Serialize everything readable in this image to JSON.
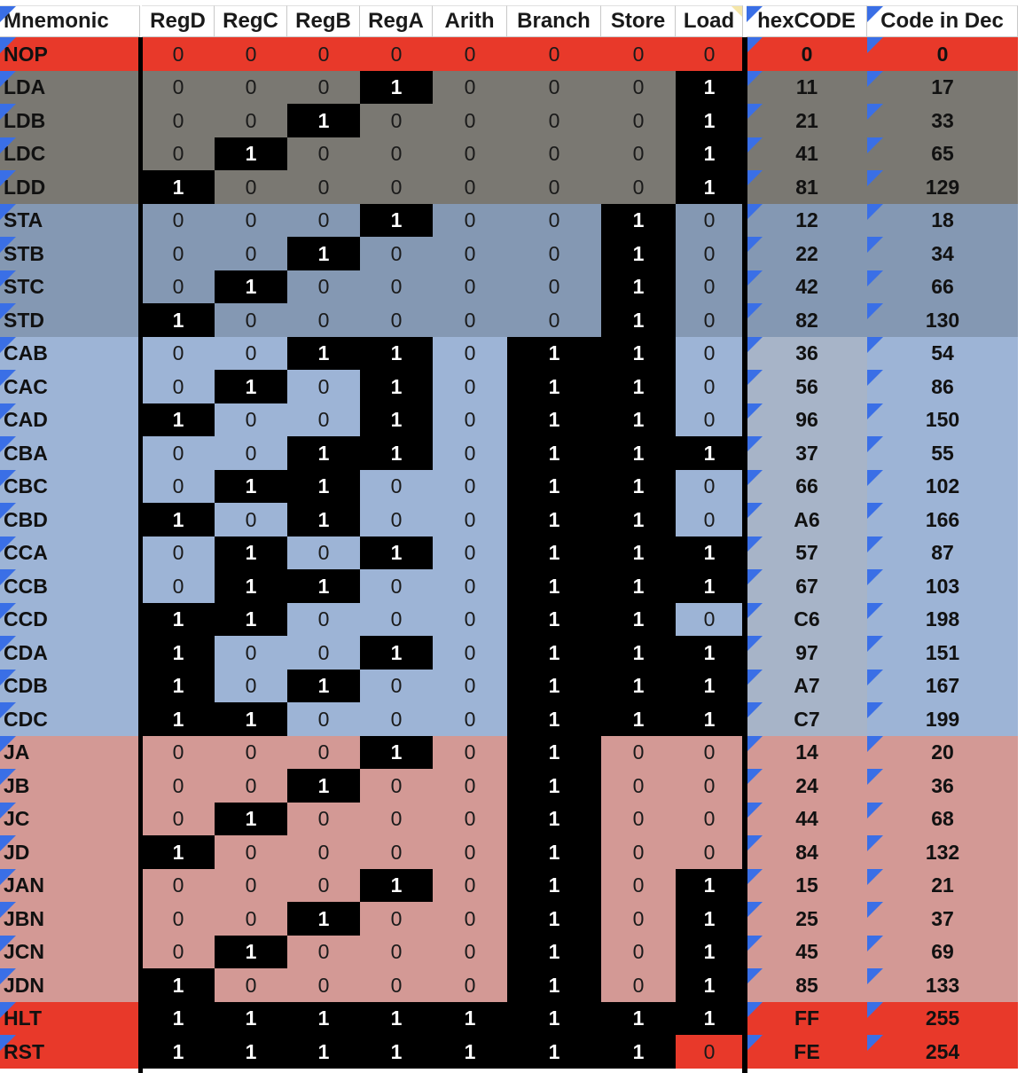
{
  "colors": {
    "red": "#e8392a",
    "gray": "#7a7872",
    "slate": "#8498b3",
    "blue": "#9db4d6",
    "hexblue": "#a7b4c8",
    "pink": "#d39995",
    "black": "#000000",
    "triangle": "#3a6fe6"
  },
  "headers": [
    "Mnemonic",
    "RegD",
    "RegC",
    "RegB",
    "RegA",
    "Arith",
    "Branch",
    "Store",
    "Load",
    "hexCODE",
    "Code in Dec"
  ],
  "rows": [
    {
      "m": "NOP",
      "bits": [
        0,
        0,
        0,
        0,
        0,
        0,
        0,
        0
      ],
      "hex": "0",
      "dec": "0",
      "group": "red"
    },
    {
      "m": "LDA",
      "bits": [
        0,
        0,
        0,
        1,
        0,
        0,
        0,
        1
      ],
      "hex": "11",
      "dec": "17",
      "group": "gray"
    },
    {
      "m": "LDB",
      "bits": [
        0,
        0,
        1,
        0,
        0,
        0,
        0,
        1
      ],
      "hex": "21",
      "dec": "33",
      "group": "gray"
    },
    {
      "m": "LDC",
      "bits": [
        0,
        1,
        0,
        0,
        0,
        0,
        0,
        1
      ],
      "hex": "41",
      "dec": "65",
      "group": "gray"
    },
    {
      "m": "LDD",
      "bits": [
        1,
        0,
        0,
        0,
        0,
        0,
        0,
        1
      ],
      "hex": "81",
      "dec": "129",
      "group": "gray"
    },
    {
      "m": "STA",
      "bits": [
        0,
        0,
        0,
        1,
        0,
        0,
        1,
        0
      ],
      "hex": "12",
      "dec": "18",
      "group": "slate"
    },
    {
      "m": "STB",
      "bits": [
        0,
        0,
        1,
        0,
        0,
        0,
        1,
        0
      ],
      "hex": "22",
      "dec": "34",
      "group": "slate"
    },
    {
      "m": "STC",
      "bits": [
        0,
        1,
        0,
        0,
        0,
        0,
        1,
        0
      ],
      "hex": "42",
      "dec": "66",
      "group": "slate"
    },
    {
      "m": "STD",
      "bits": [
        1,
        0,
        0,
        0,
        0,
        0,
        1,
        0
      ],
      "hex": "82",
      "dec": "130",
      "group": "slate"
    },
    {
      "m": "CAB",
      "bits": [
        0,
        0,
        1,
        1,
        0,
        1,
        1,
        0
      ],
      "hex": "36",
      "dec": "54",
      "group": "blue"
    },
    {
      "m": "CAC",
      "bits": [
        0,
        1,
        0,
        1,
        0,
        1,
        1,
        0
      ],
      "hex": "56",
      "dec": "86",
      "group": "blue"
    },
    {
      "m": "CAD",
      "bits": [
        1,
        0,
        0,
        1,
        0,
        1,
        1,
        0
      ],
      "hex": "96",
      "dec": "150",
      "group": "blue"
    },
    {
      "m": "CBA",
      "bits": [
        0,
        0,
        1,
        1,
        0,
        1,
        1,
        1
      ],
      "hex": "37",
      "dec": "55",
      "group": "blue"
    },
    {
      "m": "CBC",
      "bits": [
        0,
        1,
        1,
        0,
        0,
        1,
        1,
        0
      ],
      "hex": "66",
      "dec": "102",
      "group": "blue"
    },
    {
      "m": "CBD",
      "bits": [
        1,
        0,
        1,
        0,
        0,
        1,
        1,
        0
      ],
      "hex": "A6",
      "dec": "166",
      "group": "blue"
    },
    {
      "m": "CCA",
      "bits": [
        0,
        1,
        0,
        1,
        0,
        1,
        1,
        1
      ],
      "hex": "57",
      "dec": "87",
      "group": "blue"
    },
    {
      "m": "CCB",
      "bits": [
        0,
        1,
        1,
        0,
        0,
        1,
        1,
        1
      ],
      "hex": "67",
      "dec": "103",
      "group": "blue"
    },
    {
      "m": "CCD",
      "bits": [
        1,
        1,
        0,
        0,
        0,
        1,
        1,
        0
      ],
      "hex": "C6",
      "dec": "198",
      "group": "blue"
    },
    {
      "m": "CDA",
      "bits": [
        1,
        0,
        0,
        1,
        0,
        1,
        1,
        1
      ],
      "hex": "97",
      "dec": "151",
      "group": "blue"
    },
    {
      "m": "CDB",
      "bits": [
        1,
        0,
        1,
        0,
        0,
        1,
        1,
        1
      ],
      "hex": "A7",
      "dec": "167",
      "group": "blue"
    },
    {
      "m": "CDC",
      "bits": [
        1,
        1,
        0,
        0,
        0,
        1,
        1,
        1
      ],
      "hex": "C7",
      "dec": "199",
      "group": "blue"
    },
    {
      "m": "JA",
      "bits": [
        0,
        0,
        0,
        1,
        0,
        1,
        0,
        0
      ],
      "hex": "14",
      "dec": "20",
      "group": "pink"
    },
    {
      "m": "JB",
      "bits": [
        0,
        0,
        1,
        0,
        0,
        1,
        0,
        0
      ],
      "hex": "24",
      "dec": "36",
      "group": "pink"
    },
    {
      "m": "JC",
      "bits": [
        0,
        1,
        0,
        0,
        0,
        1,
        0,
        0
      ],
      "hex": "44",
      "dec": "68",
      "group": "pink"
    },
    {
      "m": "JD",
      "bits": [
        1,
        0,
        0,
        0,
        0,
        1,
        0,
        0
      ],
      "hex": "84",
      "dec": "132",
      "group": "pink"
    },
    {
      "m": "JAN",
      "bits": [
        0,
        0,
        0,
        1,
        0,
        1,
        0,
        1
      ],
      "hex": "15",
      "dec": "21",
      "group": "pink"
    },
    {
      "m": "JBN",
      "bits": [
        0,
        0,
        1,
        0,
        0,
        1,
        0,
        1
      ],
      "hex": "25",
      "dec": "37",
      "group": "pink"
    },
    {
      "m": "JCN",
      "bits": [
        0,
        1,
        0,
        0,
        0,
        1,
        0,
        1
      ],
      "hex": "45",
      "dec": "69",
      "group": "pink"
    },
    {
      "m": "JDN",
      "bits": [
        1,
        0,
        0,
        0,
        0,
        1,
        0,
        1
      ],
      "hex": "85",
      "dec": "133",
      "group": "pink"
    },
    {
      "m": "HLT",
      "bits": [
        1,
        1,
        1,
        1,
        1,
        1,
        1,
        1
      ],
      "hex": "FF",
      "dec": "255",
      "group": "red"
    },
    {
      "m": "RST",
      "bits": [
        1,
        1,
        1,
        1,
        1,
        1,
        1,
        0
      ],
      "hex": "FE",
      "dec": "254",
      "group": "red"
    }
  ]
}
